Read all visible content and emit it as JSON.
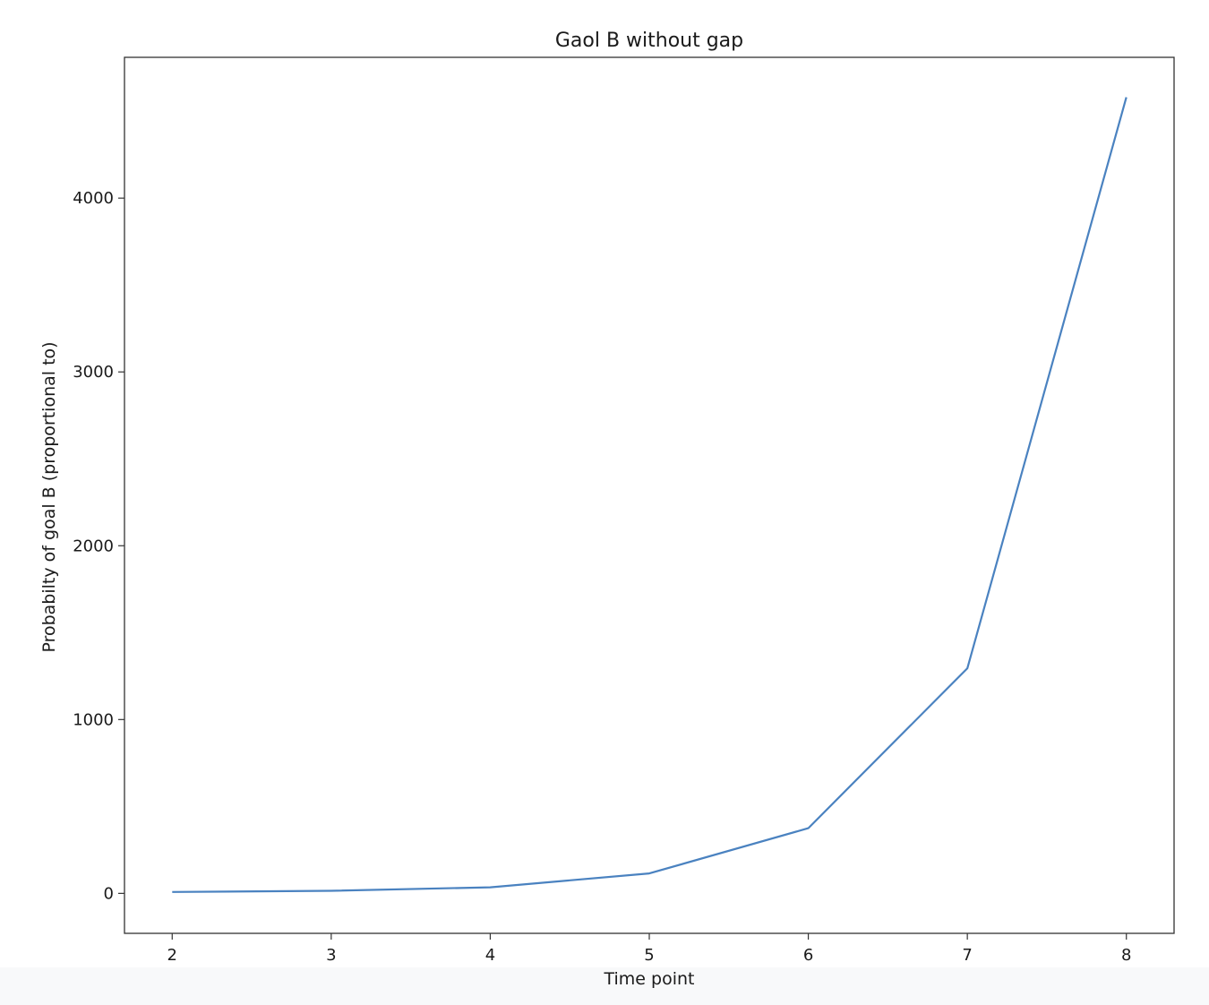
{
  "chart_data": {
    "type": "line",
    "title": "Gaol B without gap",
    "xlabel": "Time point",
    "ylabel": "Probabilty of goal B (proportional to)",
    "x": [
      2,
      3,
      4,
      5,
      6,
      7,
      8
    ],
    "series": [
      {
        "values": [
          8,
          15,
          35,
          115,
          375,
          1295,
          4580
        ]
      }
    ],
    "xlim": [
      1.7,
      8.3
    ],
    "ylim": [
      -230,
      4810
    ],
    "xticks": [
      2,
      3,
      4,
      5,
      6,
      7,
      8
    ],
    "yticks": [
      0,
      1000,
      2000,
      3000,
      4000
    ],
    "grid": false,
    "line_color": "#4a82c0"
  }
}
